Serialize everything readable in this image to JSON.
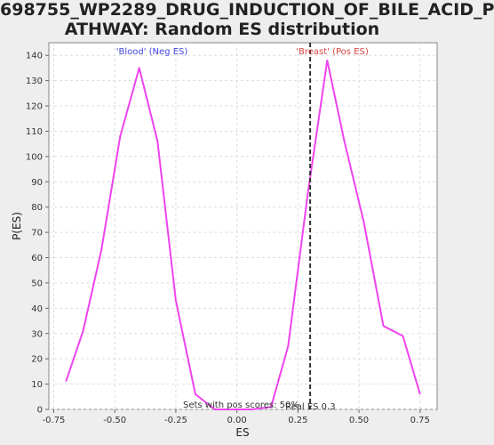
{
  "chart_data": {
    "type": "line",
    "title": "698755_WP2289_DRUG_INDUCTION_OF_BILE_ACID_PATHWAY: Random ES distribution",
    "title_lines": [
      "698755_WP2289_DRUG_INDUCTION_OF_BILE_ACID_P",
      "ATHWAY: Random ES distribution"
    ],
    "xlabel": "ES",
    "ylabel": "P(ES)",
    "xlim": [
      -0.77,
      0.82
    ],
    "ylim": [
      0,
      145
    ],
    "xticks": [
      -0.75,
      -0.5,
      -0.25,
      0.0,
      0.25,
      0.5,
      0.75
    ],
    "xtick_labels": [
      "-0.75",
      "-0.50",
      "-0.25",
      "0.00",
      "0.25",
      "0.50",
      "0.75"
    ],
    "yticks": [
      0,
      10,
      20,
      30,
      40,
      50,
      60,
      70,
      80,
      90,
      100,
      110,
      120,
      130,
      140
    ],
    "grid": true,
    "series": [
      {
        "name": "Random ES distribution",
        "color": "#ee44ee",
        "x": [
          -0.7,
          -0.63,
          -0.555,
          -0.478,
          -0.4,
          -0.325,
          -0.25,
          -0.17,
          -0.09,
          -0.01,
          0.06,
          0.14,
          0.21,
          0.29,
          0.37,
          0.44,
          0.52,
          0.6,
          0.68,
          0.75
        ],
        "y": [
          11,
          31,
          63,
          108,
          135,
          106,
          43,
          6,
          0,
          0,
          0,
          1,
          25,
          85,
          138,
          106,
          74,
          33,
          29,
          6
        ]
      }
    ],
    "real_es": 0.3,
    "real_es_label": "Real ES 0.3",
    "neg_label": "'Blood' (Neg ES)",
    "neg_color": "#4444dd",
    "pos_label": "'Breast' (Pos ES)",
    "pos_color": "#dd4444",
    "footer_label": "Sets with pos scores: 50%"
  }
}
